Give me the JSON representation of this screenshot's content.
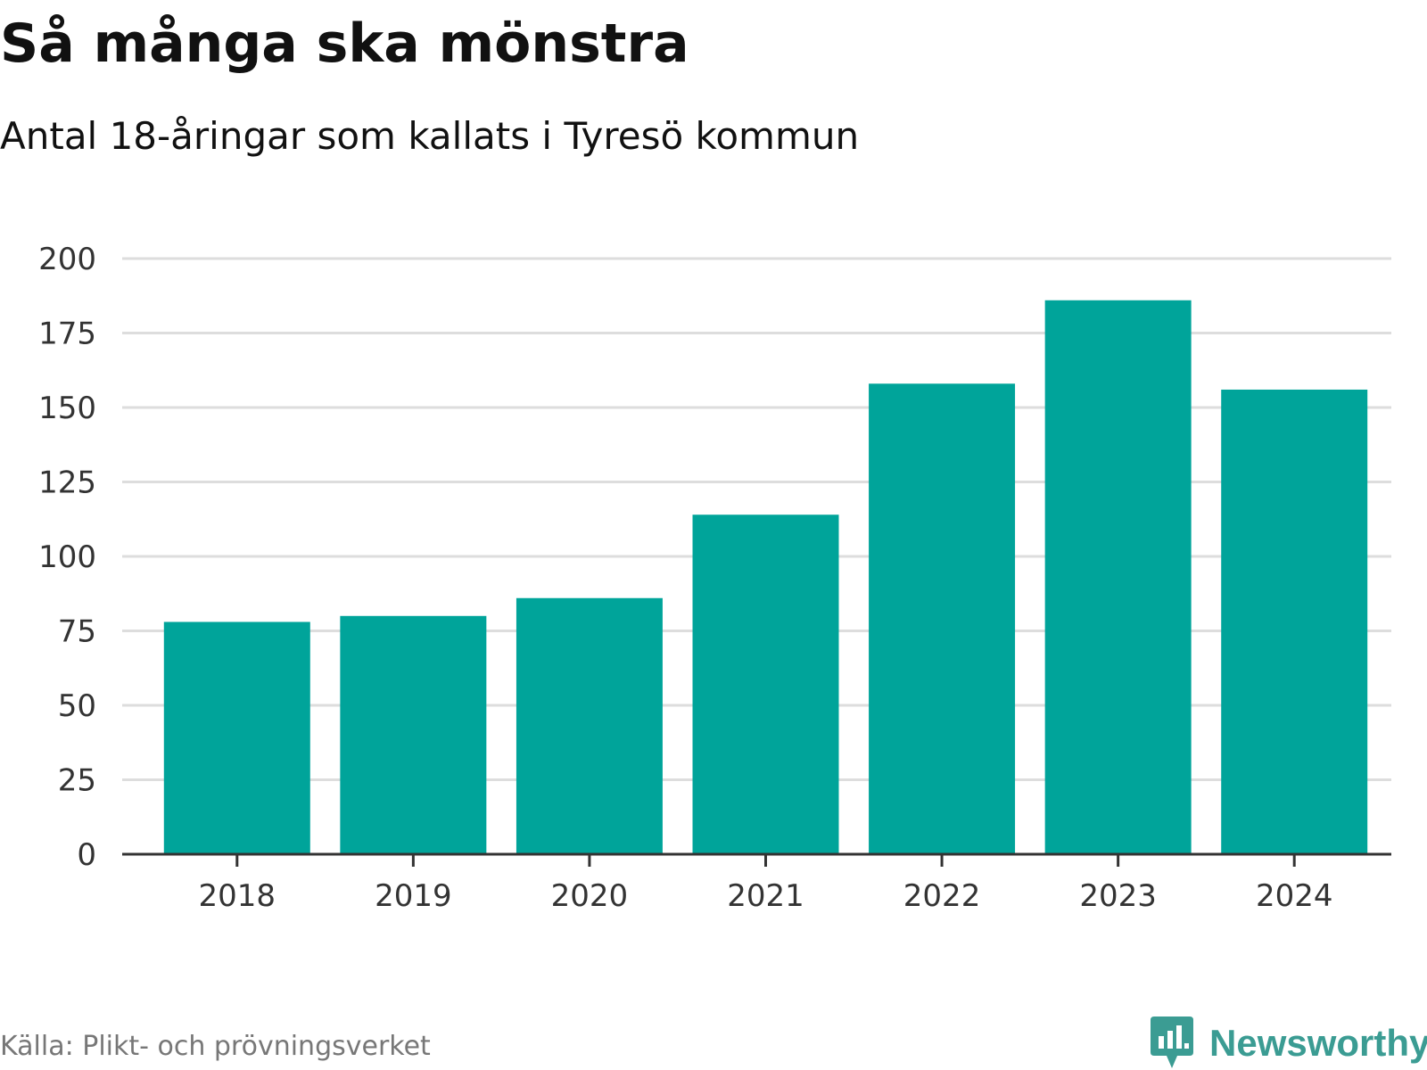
{
  "header": {
    "title": "Så många ska mönstra",
    "subtitle": "Antal 18-åringar som kallats i Tyresö kommun"
  },
  "footer": {
    "source": "Källa: Plikt- och prövningsverket",
    "brand": "Newsworthy",
    "brand_icon": "newsworthy-chart-bubble-icon"
  },
  "colors": {
    "bar": "#00a49a",
    "grid": "#dddddd",
    "axis": "#333333",
    "brand": "#3b9c93"
  },
  "chart_data": {
    "type": "bar",
    "title": "Så många ska mönstra",
    "subtitle": "Antal 18-åringar som kallats i Tyresö kommun",
    "categories": [
      "2018",
      "2019",
      "2020",
      "2021",
      "2022",
      "2023",
      "2024"
    ],
    "values": [
      78,
      80,
      86,
      114,
      158,
      186,
      156
    ],
    "xlabel": "",
    "ylabel": "",
    "ylim": [
      0,
      200
    ],
    "yticks": [
      0,
      25,
      50,
      75,
      100,
      125,
      150,
      175,
      200
    ],
    "grid": true,
    "legend": "none"
  }
}
